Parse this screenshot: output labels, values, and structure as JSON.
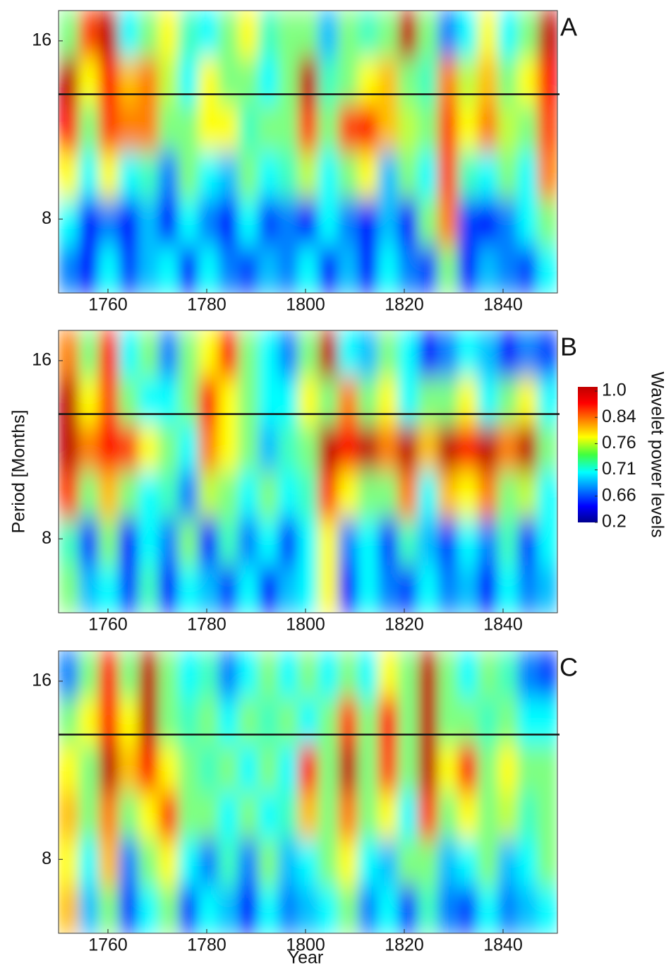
{
  "chart_data": [
    {
      "type": "heatmap",
      "panel_label": "A",
      "xlim": [
        1750,
        1851
      ],
      "xticks": [
        1760,
        1780,
        1800,
        1820,
        1840
      ],
      "ylim": [
        6,
        18
      ],
      "yticks": [
        8,
        16
      ],
      "log_scale": true,
      "reference_line": 13,
      "z": [
        [
          0.6,
          0.85,
          0.95,
          0.5,
          0.6,
          0.7,
          0.55,
          0.5,
          0.6,
          0.7,
          0.55,
          0.6,
          0.6,
          0.45,
          0.6,
          0.55,
          0.6,
          0.95,
          0.6,
          0.4,
          0.5,
          0.7,
          0.5,
          0.6,
          0.95
        ],
        [
          0.95,
          0.7,
          0.9,
          0.75,
          0.8,
          0.65,
          0.5,
          0.7,
          0.6,
          0.6,
          0.5,
          0.6,
          0.95,
          0.55,
          0.6,
          0.7,
          0.75,
          0.6,
          0.55,
          0.8,
          0.65,
          0.75,
          0.6,
          0.7,
          0.9
        ],
        [
          0.9,
          0.6,
          0.85,
          0.8,
          0.8,
          0.6,
          0.6,
          0.7,
          0.7,
          0.55,
          0.6,
          0.6,
          0.85,
          0.6,
          0.85,
          0.9,
          0.75,
          0.65,
          0.6,
          0.85,
          0.7,
          0.8,
          0.65,
          0.6,
          0.85
        ],
        [
          0.7,
          0.5,
          0.7,
          0.5,
          0.55,
          0.4,
          0.6,
          0.5,
          0.45,
          0.6,
          0.5,
          0.55,
          0.65,
          0.5,
          0.6,
          0.7,
          0.45,
          0.6,
          0.5,
          0.85,
          0.55,
          0.5,
          0.6,
          0.5,
          0.8
        ],
        [
          0.5,
          0.3,
          0.4,
          0.3,
          0.45,
          0.3,
          0.5,
          0.4,
          0.3,
          0.5,
          0.35,
          0.4,
          0.3,
          0.5,
          0.4,
          0.3,
          0.45,
          0.3,
          0.6,
          0.8,
          0.35,
          0.3,
          0.4,
          0.5,
          0.6
        ],
        [
          0.4,
          0.3,
          0.5,
          0.35,
          0.45,
          0.5,
          0.3,
          0.5,
          0.4,
          0.35,
          0.45,
          0.4,
          0.5,
          0.3,
          0.45,
          0.3,
          0.5,
          0.4,
          0.35,
          0.6,
          0.3,
          0.45,
          0.4,
          0.35,
          0.5
        ]
      ]
    },
    {
      "type": "heatmap",
      "panel_label": "B",
      "ylabel": "Period [Months]",
      "xlim": [
        1750,
        1851
      ],
      "xticks": [
        1760,
        1780,
        1800,
        1820,
        1840
      ],
      "ylim": [
        6,
        18
      ],
      "yticks": [
        8,
        16
      ],
      "log_scale": true,
      "reference_line": 13,
      "colorbar_label": "Wavelet power levels",
      "colorbar_ticks": [
        {
          "value": 1.0,
          "label": "1.0"
        },
        0.84,
        0.76,
        0.71,
        0.66,
        0.2
      ],
      "z": [
        [
          0.8,
          0.6,
          0.9,
          0.5,
          0.6,
          0.4,
          0.6,
          0.7,
          0.9,
          0.6,
          0.5,
          0.4,
          0.6,
          0.95,
          0.5,
          0.45,
          0.6,
          0.5,
          0.3,
          0.4,
          0.5,
          0.45,
          0.3,
          0.4,
          0.35
        ],
        [
          0.95,
          0.7,
          0.85,
          0.6,
          0.5,
          0.5,
          0.6,
          0.9,
          0.7,
          0.6,
          0.5,
          0.5,
          0.7,
          0.6,
          0.8,
          0.6,
          0.7,
          0.5,
          0.6,
          0.6,
          0.7,
          0.5,
          0.6,
          0.7,
          0.5
        ],
        [
          0.95,
          0.8,
          0.9,
          0.85,
          0.7,
          0.6,
          0.5,
          0.8,
          0.7,
          0.6,
          0.45,
          0.55,
          0.6,
          0.95,
          0.9,
          0.95,
          0.8,
          0.95,
          0.75,
          0.95,
          0.9,
          0.95,
          0.8,
          0.95,
          0.6
        ],
        [
          0.85,
          0.6,
          0.75,
          0.6,
          0.5,
          0.55,
          0.4,
          0.65,
          0.6,
          0.5,
          0.6,
          0.5,
          0.55,
          0.85,
          0.7,
          0.6,
          0.6,
          0.8,
          0.5,
          0.75,
          0.7,
          0.8,
          0.6,
          0.65,
          0.5
        ],
        [
          0.55,
          0.35,
          0.6,
          0.3,
          0.5,
          0.4,
          0.6,
          0.3,
          0.55,
          0.4,
          0.5,
          0.35,
          0.5,
          0.7,
          0.4,
          0.5,
          0.35,
          0.55,
          0.45,
          0.35,
          0.5,
          0.4,
          0.55,
          0.35,
          0.5
        ],
        [
          0.6,
          0.45,
          0.5,
          0.35,
          0.55,
          0.3,
          0.5,
          0.45,
          0.35,
          0.5,
          0.3,
          0.45,
          0.5,
          0.7,
          0.3,
          0.5,
          0.4,
          0.35,
          0.5,
          0.4,
          0.45,
          0.3,
          0.5,
          0.4,
          0.45
        ]
      ]
    },
    {
      "type": "heatmap",
      "panel_label": "C",
      "xlabel": "Year",
      "xlim": [
        1750,
        1851
      ],
      "xticks": [
        1760,
        1780,
        1800,
        1820,
        1840
      ],
      "ylim": [
        6,
        18
      ],
      "yticks": [
        8,
        16
      ],
      "log_scale": true,
      "reference_line": 13,
      "z": [
        [
          0.4,
          0.6,
          0.9,
          0.6,
          0.95,
          0.6,
          0.5,
          0.55,
          0.4,
          0.5,
          0.6,
          0.5,
          0.6,
          0.5,
          0.6,
          0.5,
          0.7,
          0.6,
          0.95,
          0.6,
          0.5,
          0.6,
          0.55,
          0.4,
          0.35
        ],
        [
          0.6,
          0.7,
          0.9,
          0.7,
          0.95,
          0.6,
          0.55,
          0.6,
          0.5,
          0.6,
          0.55,
          0.6,
          0.5,
          0.6,
          0.85,
          0.6,
          0.9,
          0.6,
          0.95,
          0.6,
          0.6,
          0.55,
          0.6,
          0.5,
          0.5
        ],
        [
          0.7,
          0.6,
          0.95,
          0.75,
          0.9,
          0.7,
          0.6,
          0.55,
          0.6,
          0.5,
          0.6,
          0.5,
          0.9,
          0.6,
          0.95,
          0.6,
          0.85,
          0.6,
          0.95,
          0.7,
          0.9,
          0.6,
          0.7,
          0.6,
          0.6
        ],
        [
          0.75,
          0.6,
          0.8,
          0.6,
          0.7,
          0.85,
          0.6,
          0.6,
          0.5,
          0.6,
          0.5,
          0.55,
          0.75,
          0.6,
          0.8,
          0.6,
          0.7,
          0.5,
          0.85,
          0.6,
          0.7,
          0.6,
          0.65,
          0.55,
          0.6
        ],
        [
          0.7,
          0.5,
          0.75,
          0.4,
          0.6,
          0.7,
          0.5,
          0.4,
          0.55,
          0.4,
          0.6,
          0.45,
          0.5,
          0.6,
          0.7,
          0.5,
          0.45,
          0.6,
          0.6,
          0.45,
          0.5,
          0.6,
          0.45,
          0.5,
          0.6
        ],
        [
          0.75,
          0.45,
          0.6,
          0.35,
          0.5,
          0.6,
          0.35,
          0.5,
          0.45,
          0.3,
          0.5,
          0.4,
          0.45,
          0.5,
          0.6,
          0.4,
          0.5,
          0.35,
          0.55,
          0.4,
          0.35,
          0.5,
          0.4,
          0.45,
          0.5
        ]
      ]
    }
  ]
}
